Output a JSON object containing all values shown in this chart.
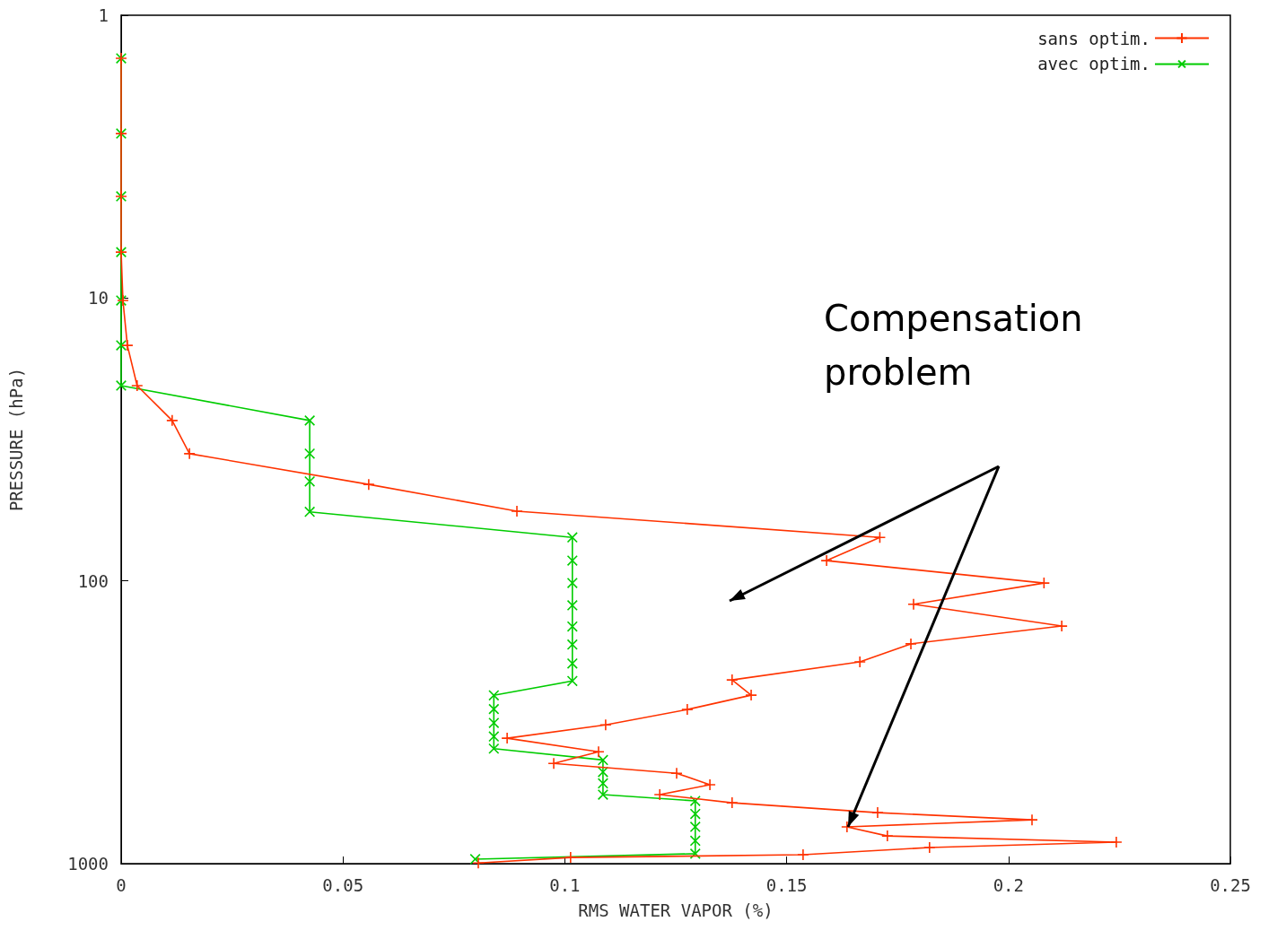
{
  "chart_data": {
    "type": "line",
    "xlabel": "RMS WATER VAPOR (%)",
    "ylabel": "PRESSURE (hPa)",
    "xlim": [
      0,
      0.25
    ],
    "xticks": [
      0,
      0.05,
      0.1,
      0.15,
      0.2,
      0.25
    ],
    "ylim": [
      1000,
      1
    ],
    "yticks": [
      1,
      10,
      100,
      1000
    ],
    "log": "y",
    "legend": "top right",
    "marker": "cross",
    "grid": false,
    "annotations": [
      "Compensation problem"
    ],
    "series": [
      {
        "name": "sans optim.",
        "color": "#ff3300",
        "x": [
          0,
          0,
          0,
          0,
          0.0004,
          0.0014,
          0.0036,
          0.0115,
          0.0154,
          0.0558,
          0.0892,
          0.171,
          0.159,
          0.208,
          0.1786,
          0.212,
          0.178,
          0.1665,
          0.1377,
          0.142,
          0.1276,
          0.1092,
          0.087,
          0.1076,
          0.0975,
          0.1252,
          0.1327,
          0.1214,
          0.1377,
          0.1705,
          0.2053,
          0.1636,
          0.1727,
          0.2243,
          0.1822,
          0.1537,
          0.1013,
          0.0805
        ],
        "values": [
          1.42,
          2.62,
          4.37,
          6.88,
          10.2,
          14.7,
          20.4,
          27.1,
          35.5,
          45.6,
          56.7,
          70.2,
          84.8,
          101.8,
          121,
          144.5,
          167,
          193.5,
          224,
          253.6,
          285,
          323,
          360,
          402,
          442,
          479,
          526,
          570,
          609,
          660,
          700,
          741,
          798,
          839,
          877,
          930,
          951,
          995
        ]
      },
      {
        "name": "avec optim.",
        "color": "#00cc00",
        "x": [
          0,
          0,
          0,
          0,
          0,
          0,
          0,
          0.0425,
          0.0425,
          0.0425,
          0.0425,
          0.1017,
          0.1017,
          0.1017,
          0.1017,
          0.1017,
          0.1017,
          0.1017,
          0.1017,
          0.084,
          0.084,
          0.084,
          0.084,
          0.084,
          0.1086,
          0.1086,
          0.1086,
          0.1086,
          0.1294,
          0.1294,
          0.1294,
          0.1294,
          0.1294,
          0.0798
        ],
        "values": [
          1.42,
          2.62,
          4.37,
          6.88,
          10.2,
          14.7,
          20.4,
          27.1,
          35.5,
          44.5,
          57,
          70.2,
          84.8,
          101.8,
          122,
          145,
          168,
          196,
          226,
          254,
          284,
          318,
          355,
          392,
          430,
          474,
          520,
          570,
          600,
          667,
          741,
          830,
          922,
          964
        ]
      }
    ]
  }
}
